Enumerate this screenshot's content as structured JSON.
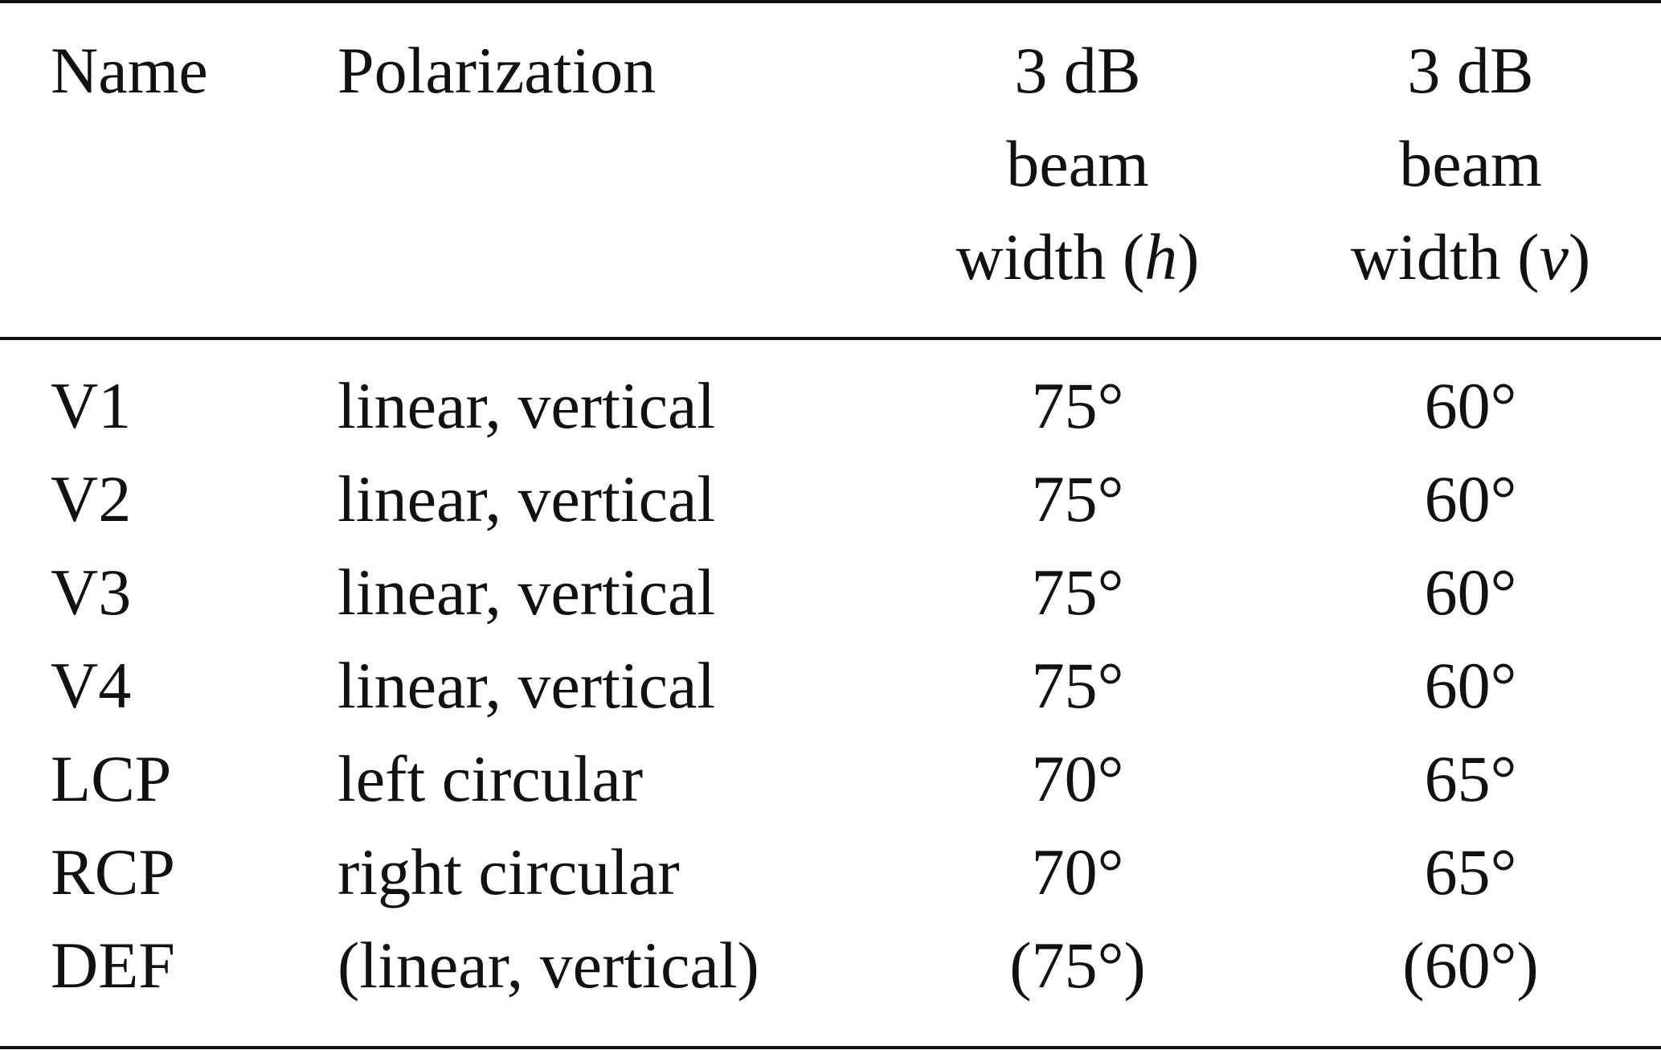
{
  "table": {
    "headers": {
      "name": "Name",
      "polarization": "Polarization",
      "beam_h": {
        "line1": "3 dB",
        "line2": "beam",
        "line3_prefix": "width (",
        "line3_var": "h",
        "line3_suffix": ")"
      },
      "beam_v": {
        "line1": "3 dB",
        "line2": "beam",
        "line3_prefix": "width (",
        "line3_var": "v",
        "line3_suffix": ")"
      }
    },
    "rows": [
      {
        "name": "V1",
        "polarization": "linear, vertical",
        "beam_h": "75°",
        "beam_v": "60°"
      },
      {
        "name": "V2",
        "polarization": "linear, vertical",
        "beam_h": "75°",
        "beam_v": "60°"
      },
      {
        "name": "V3",
        "polarization": "linear, vertical",
        "beam_h": "75°",
        "beam_v": "60°"
      },
      {
        "name": "V4",
        "polarization": "linear, vertical",
        "beam_h": "75°",
        "beam_v": "60°"
      },
      {
        "name": "LCP",
        "polarization": "left circular",
        "beam_h": "70°",
        "beam_v": "65°"
      },
      {
        "name": "RCP",
        "polarization": "right circular",
        "beam_h": "70°",
        "beam_v": "65°"
      },
      {
        "name": "DEF",
        "polarization": "(linear, vertical)",
        "beam_h": "(75°)",
        "beam_v": "(60°)"
      }
    ]
  }
}
